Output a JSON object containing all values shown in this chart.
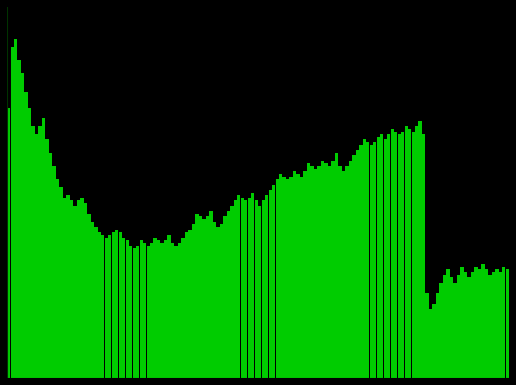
{
  "values": [
    10200,
    12500,
    12800,
    12000,
    11500,
    10800,
    10200,
    9500,
    9200,
    9500,
    9800,
    9000,
    8500,
    8000,
    7500,
    7200,
    6800,
    6900,
    6700,
    6500,
    6700,
    6800,
    6600,
    6200,
    5900,
    5700,
    5500,
    5400,
    5300,
    5400,
    5500,
    5600,
    5500,
    5300,
    5200,
    5000,
    4900,
    5000,
    5200,
    5100,
    5000,
    5100,
    5300,
    5200,
    5100,
    5200,
    5400,
    5100,
    5000,
    5100,
    5300,
    5500,
    5600,
    5800,
    6200,
    6100,
    6000,
    6100,
    6300,
    5900,
    5700,
    5800,
    6100,
    6300,
    6500,
    6700,
    6900,
    6800,
    6700,
    6800,
    7000,
    6700,
    6500,
    6700,
    6900,
    7100,
    7300,
    7500,
    7700,
    7600,
    7500,
    7600,
    7800,
    7700,
    7600,
    7800,
    8100,
    8000,
    7900,
    8000,
    8200,
    8100,
    8000,
    8200,
    8500,
    8000,
    7800,
    8000,
    8200,
    8400,
    8600,
    8800,
    9000,
    8900,
    8800,
    8900,
    9100,
    9200,
    9000,
    9200,
    9400,
    9300,
    9200,
    9300,
    9500,
    9400,
    9300,
    9500,
    9700,
    9200,
    3200,
    2600,
    2800,
    3200,
    3600,
    3900,
    4100,
    3800,
    3600,
    3900,
    4200,
    4000,
    3800,
    4000,
    4200,
    4100,
    4300,
    4100,
    3900,
    4000,
    4100,
    4000,
    4200,
    4100
  ],
  "bar_color": "#00cc00",
  "background_color": "#000000",
  "figure_facecolor": "#000000",
  "ylim": [
    0,
    14000
  ],
  "left_axis_color": "#003300",
  "bottom_axis_color": "#003300"
}
